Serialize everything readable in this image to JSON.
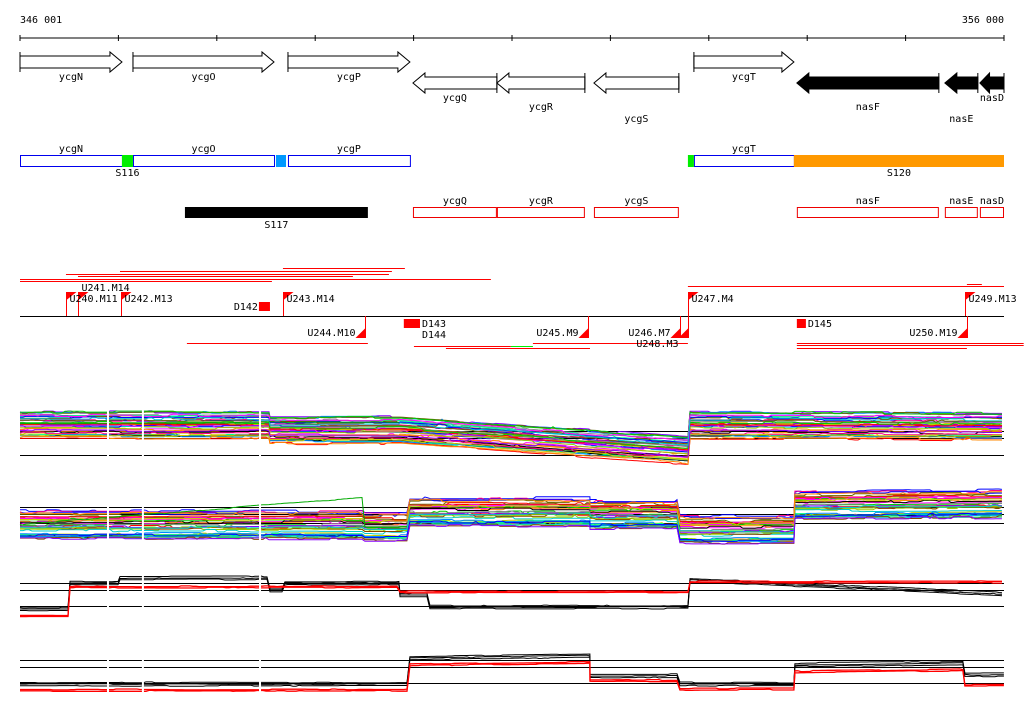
{
  "ruler": {
    "start_label": "346 001",
    "end_label": "356 000",
    "start_bp": 346001,
    "end_bp": 356000,
    "tick_count": 11
  },
  "genes": [
    {
      "name": "ycgN",
      "start": 346001,
      "end": 347037,
      "strand": "+",
      "fill": "#ffffff"
    },
    {
      "name": "ycgO",
      "start": 347149,
      "end": 348582,
      "strand": "+",
      "fill": "#ffffff"
    },
    {
      "name": "ycgP",
      "start": 348724,
      "end": 349963,
      "strand": "+",
      "fill": "#ffffff"
    },
    {
      "name": "ycgQ",
      "start": 349994,
      "end": 350847,
      "strand": "-",
      "fill": "#ffffff"
    },
    {
      "name": "ycgR",
      "start": 350847,
      "end": 351741,
      "strand": "-",
      "fill": "#ffffff"
    },
    {
      "name": "ycgS",
      "start": 351833,
      "end": 352696,
      "strand": "-",
      "fill": "#ffffff"
    },
    {
      "name": "ycgT",
      "start": 352849,
      "end": 353865,
      "strand": "+",
      "fill": "#ffffff"
    },
    {
      "name": "nasF",
      "start": 353895,
      "end": 355338,
      "strand": "-",
      "fill": "#000000"
    },
    {
      "name": "nasE",
      "start": 355399,
      "end": 355734,
      "strand": "-",
      "fill": "#000000"
    },
    {
      "name": "nasD",
      "start": 355755,
      "end": 356000,
      "strand": "-",
      "fill": "#000000"
    }
  ],
  "operons_forward": {
    "boxes": [
      {
        "label": "ycgN",
        "start": 346001,
        "end": 347037
      },
      {
        "label": "ycgO",
        "start": 347149,
        "end": 348582
      },
      {
        "label": "ycgP",
        "start": 348724,
        "end": 349963
      },
      {
        "label": "ycgT",
        "start": 352849,
        "end": 353865
      }
    ],
    "segments": [
      {
        "label": "S116",
        "start": 347037,
        "end": 347149,
        "color": "#00ee00"
      },
      {
        "label": "",
        "start": 348602,
        "end": 348704,
        "color": "#0099ff"
      },
      {
        "label": "",
        "start": 352788,
        "end": 352849,
        "color": "#00ee00"
      },
      {
        "label": "S120",
        "start": 353865,
        "end": 356000,
        "color": "#ff9900"
      }
    ],
    "box_color": "#0000ee"
  },
  "operons_reverse": {
    "segments": [
      {
        "label": "S117",
        "start": 347677,
        "end": 349536,
        "color": "#000000"
      }
    ],
    "boxes": [
      {
        "label": "ycgQ",
        "start": 349994,
        "end": 350847
      },
      {
        "label": "ycgR",
        "start": 350847,
        "end": 351741
      },
      {
        "label": "ycgS",
        "start": 351833,
        "end": 352696
      },
      {
        "label": "nasF",
        "start": 353895,
        "end": 355338
      },
      {
        "label": "nasE",
        "start": 355399,
        "end": 355734
      },
      {
        "label": "nasD",
        "start": 355755,
        "end": 356000
      }
    ],
    "box_color": "#ee0000"
  },
  "features": {
    "color": "#ff0000",
    "upper_lines": [
      {
        "start": 348673,
        "end": 349912,
        "color": "#ff0000"
      },
      {
        "start": 347017,
        "end": 349780,
        "color": "#ff0000"
      },
      {
        "start": 346468,
        "end": 349750,
        "color": "#ff0000"
      },
      {
        "start": 346590,
        "end": 349384,
        "color": "#ff0000"
      },
      {
        "start": 346001,
        "end": 350786,
        "color": "#ff0000"
      },
      {
        "start": 346001,
        "end": 348561,
        "color": "#ff0000"
      },
      {
        "start": 352788,
        "end": 356000,
        "color": "#ff0000"
      },
      {
        "start": 355623,
        "end": 355775,
        "color": "#ff0000"
      }
    ],
    "lower_lines": [
      {
        "start": 347697,
        "end": 349536,
        "color": "#ff0000"
      },
      {
        "start": 350004,
        "end": 350989,
        "color": "#ff0000"
      },
      {
        "start": 350989,
        "end": 351213,
        "color": "#00ee00"
      },
      {
        "start": 351213,
        "end": 352788,
        "color": "#ff0000"
      },
      {
        "start": 350329,
        "end": 351793,
        "color": "#ff0000"
      },
      {
        "start": 353895,
        "end": 356200,
        "color": "#ff0000"
      },
      {
        "start": 353895,
        "end": 356200,
        "color": "#ff0000"
      },
      {
        "start": 353895,
        "end": 355623,
        "color": "#ff0000"
      }
    ],
    "up_markers": [
      {
        "label": "U240.M11",
        "pos": 346468
      },
      {
        "label": "U241.M14",
        "pos": 346590
      },
      {
        "label": "U242.M13",
        "pos": 347027
      },
      {
        "label": "U243.M14",
        "pos": 348673
      },
      {
        "label": "U247.M4",
        "pos": 352788
      },
      {
        "label": "U249.M13",
        "pos": 355603
      }
    ],
    "down_markers": [
      {
        "label": "U244.M10",
        "pos": 349506
      },
      {
        "label": "U245.M9",
        "pos": 351773
      },
      {
        "label": "U246.M7",
        "pos": 352707
      },
      {
        "label": "U248.M3",
        "pos": 352788
      },
      {
        "label": "U250.M19",
        "pos": 355623
      }
    ],
    "boxes": [
      {
        "label": "D142",
        "start": 348429,
        "end": 348541,
        "side": "above",
        "label_side": "left"
      },
      {
        "label": "D143",
        "start": 349902,
        "end": 350065,
        "side": "below",
        "label_side": "right"
      },
      {
        "label": "D144",
        "start": 349902,
        "end": 350065,
        "side": "below",
        "label_side": "right"
      },
      {
        "label": "D145",
        "start": 353895,
        "end": 353987,
        "side": "below",
        "label_side": "right"
      }
    ]
  },
  "profiles": {
    "palette": [
      "#ff0000",
      "#00cc00",
      "#0000ff",
      "#ff00ff",
      "#00cccc",
      "#cccc00",
      "#ff8800",
      "#8800ff",
      "#000000",
      "#888888",
      "#00ff88",
      "#ff0088",
      "#0088ff",
      "#884400",
      "#99cc00",
      "#666600"
    ],
    "gaps_bp": [
      346895,
      347250,
      348440
    ],
    "panels": [
      {
        "kind": "multicolor",
        "line_count": 40,
        "spread": 22,
        "reference_levels": [
          50,
          39,
          11
        ],
        "segments": [
          [
            346001,
            348541,
            60,
            60
          ],
          [
            348541,
            349862,
            52,
            52
          ],
          [
            349862,
            352809,
            52,
            19
          ],
          [
            352809,
            356000,
            60,
            58
          ]
        ],
        "extra": [
          {
            "color": "#00aa00",
            "segments": [
              [
                346001,
                348541,
                62,
                64
              ],
              [
                348541,
                349862,
                64,
                64
              ]
            ]
          }
        ]
      },
      {
        "kind": "multicolor",
        "line_count": 40,
        "spread": 22,
        "reference_levels": [
          57,
          47,
          34
        ],
        "segments": [
          [
            346001,
            349506,
            31,
            31
          ],
          [
            349506,
            349963,
            28,
            28
          ],
          [
            349963,
            351793,
            50,
            50
          ],
          [
            351793,
            352707,
            46,
            46
          ],
          [
            352707,
            353875,
            24,
            24
          ],
          [
            353875,
            356000,
            60,
            62
          ]
        ],
        "extra": [
          {
            "color": "#00aa00",
            "segments": [
              [
                346001,
                349506,
                31,
                72
              ],
              [
                349506,
                349963,
                28,
                28
              ]
            ]
          }
        ]
      },
      {
        "kind": "pair",
        "spread": 5,
        "reference_levels": [
          74,
          60,
          28
        ],
        "black": [
          [
            346001,
            346509,
            22,
            22
          ],
          [
            346509,
            347017,
            74,
            74
          ],
          [
            347017,
            348541,
            84,
            84
          ],
          [
            348541,
            348693,
            60,
            60
          ],
          [
            348693,
            349862,
            74,
            74
          ],
          [
            349862,
            350166,
            50,
            50
          ],
          [
            350166,
            352809,
            26,
            26
          ],
          [
            352809,
            356000,
            80,
            52
          ]
        ],
        "red": [
          [
            346001,
            346509,
            8,
            8
          ],
          [
            346509,
            349862,
            66,
            66
          ],
          [
            349862,
            352809,
            56,
            56
          ],
          [
            352809,
            356000,
            76,
            76
          ]
        ]
      },
      {
        "kind": "pair",
        "spread": 5,
        "reference_levels": [
          82,
          69,
          40
        ],
        "black": [
          [
            346001,
            349963,
            38,
            38
          ],
          [
            349963,
            351793,
            85,
            90
          ],
          [
            351793,
            352707,
            53,
            53
          ],
          [
            352707,
            353875,
            38,
            38
          ],
          [
            353875,
            355603,
            73,
            76
          ],
          [
            355603,
            356000,
            55,
            55
          ]
        ],
        "red": [
          [
            346001,
            349963,
            27,
            27
          ],
          [
            349963,
            351793,
            73,
            77
          ],
          [
            351793,
            352707,
            44,
            44
          ],
          [
            352707,
            353875,
            29,
            29
          ],
          [
            353875,
            355603,
            60,
            64
          ],
          [
            355603,
            356000,
            36,
            36
          ]
        ]
      }
    ]
  }
}
